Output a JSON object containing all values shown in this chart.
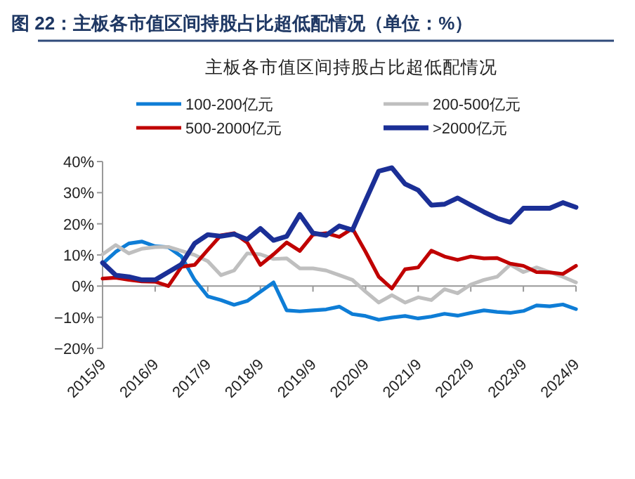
{
  "chart_data": {
    "type": "line",
    "title": "图 22：主板各市值区间持股占比超低配情况（单位：%）",
    "subtitle": "主板各市值区间持股占比超低配情况",
    "categories": [
      "2015/9",
      null,
      null,
      null,
      "2016/9",
      null,
      null,
      null,
      "2017/9",
      null,
      null,
      null,
      "2018/9",
      null,
      null,
      null,
      "2019/9",
      null,
      null,
      null,
      "2020/9",
      null,
      null,
      null,
      "2021/9",
      null,
      null,
      null,
      "2022/9",
      null,
      null,
      null,
      "2023/9",
      null,
      null,
      null,
      "2024/9"
    ],
    "series": [
      {
        "name": "100-200亿元",
        "color": "#0e7dd6",
        "values": [
          7.2,
          11,
          13.7,
          14.3,
          12.8,
          12.5,
          9.5,
          2,
          -3.3,
          -4.5,
          -6,
          -4.8,
          -1.8,
          1.2,
          -7.8,
          -8.1,
          -7.8,
          -7.5,
          -6.6,
          -9,
          -9.6,
          -10.8,
          -10.1,
          -9.6,
          -10.4,
          -9.8,
          -8.9,
          -9.5,
          -8.6,
          -7.8,
          -8.3,
          -8.6,
          -8,
          -6.2,
          -6.5,
          -5.9,
          -7.4
        ]
      },
      {
        "name": "200-500亿元",
        "color": "#bfbfbf",
        "values": [
          10.2,
          13.2,
          10.5,
          12,
          12.5,
          12.6,
          11.3,
          10,
          8,
          3.5,
          5,
          10.5,
          10.2,
          8.7,
          8.9,
          5.7,
          5.7,
          5,
          3.5,
          2,
          -1.8,
          -5.3,
          -2.9,
          -5.3,
          -3.6,
          -4.5,
          -1,
          -2.3,
          0.5,
          2,
          3,
          6.9,
          4.5,
          6,
          4.5,
          3,
          1.2
        ]
      },
      {
        "name": "500-2000亿元",
        "color": "#c00000",
        "values": [
          2.4,
          2.7,
          2,
          1.5,
          1.4,
          0,
          6.2,
          6.8,
          11.6,
          16.3,
          17,
          14,
          6.8,
          10.2,
          14,
          11.3,
          16.5,
          17,
          15.8,
          18.5,
          11,
          3,
          -0.8,
          5.4,
          6,
          11.4,
          9.5,
          8.4,
          9.5,
          8.9,
          9,
          7.2,
          6.5,
          4.5,
          4.4,
          3.9,
          6.5
        ]
      },
      {
        "name": ">2000亿元",
        "color": "#1b2f96",
        "values": [
          7.5,
          3.5,
          3,
          2,
          2,
          4.5,
          7,
          13.7,
          16.5,
          16,
          16.7,
          15,
          18.5,
          14.7,
          16,
          23,
          17,
          16.3,
          19.3,
          18,
          27.5,
          36.9,
          38,
          32.8,
          30.8,
          26,
          26.3,
          28.3,
          26,
          23.8,
          21.8,
          20.5,
          25,
          25,
          25,
          26.8,
          25.3
        ]
      }
    ],
    "ylim": [
      -20,
      40
    ],
    "yticks": [
      {
        "value": -20,
        "label": "−20%"
      },
      {
        "value": -10,
        "label": "−10%"
      },
      {
        "value": 0,
        "label": "0%"
      },
      {
        "value": 10,
        "label": "10%"
      },
      {
        "value": 20,
        "label": "20%"
      },
      {
        "value": 30,
        "label": "30%"
      },
      {
        "value": 40,
        "label": "40%"
      }
    ],
    "legend": "top"
  }
}
